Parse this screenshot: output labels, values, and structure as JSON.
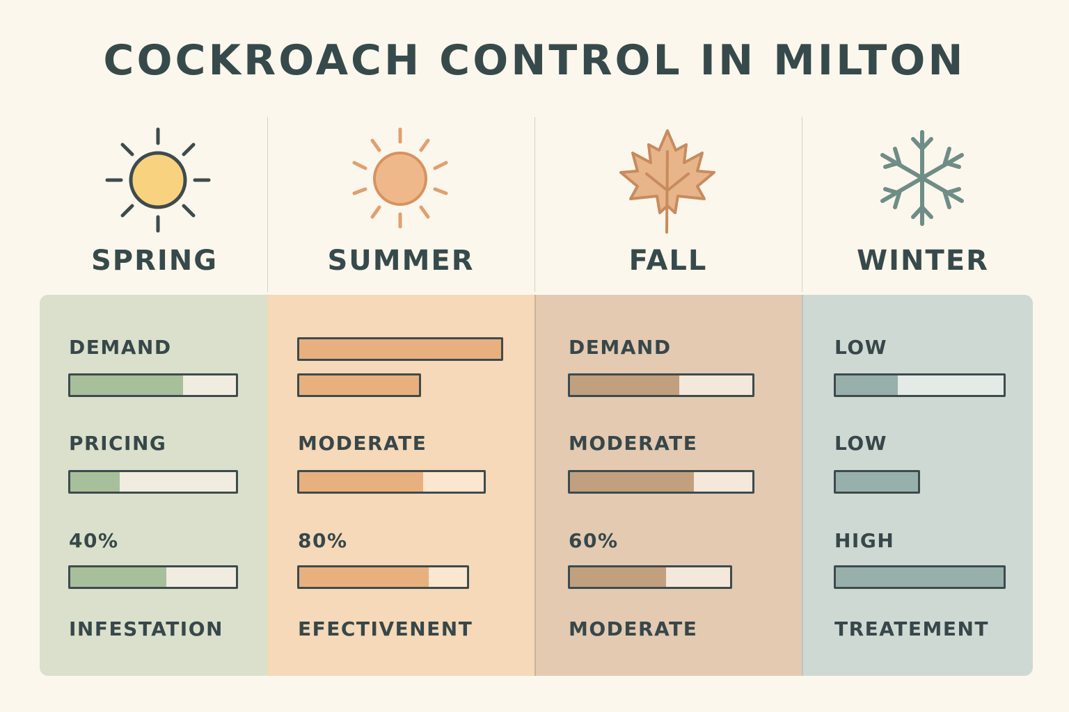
{
  "title": "COCKROACH CONTROL IN MILTON",
  "colors": {
    "background": "#fcf7ec",
    "spring_fill": "#a7bf9b",
    "summer_fill": "#e8b07f",
    "fall_fill": "#c1a07f",
    "winter_fill": "#97b0ac"
  },
  "seasons": [
    {
      "name": "SPRING",
      "icon": "sun-icon",
      "labels": [
        "DEMAND",
        "PRICING",
        "40%",
        "INFESTATION"
      ],
      "bars": [
        0.68,
        0.3,
        0.58
      ]
    },
    {
      "name": "SUMMER",
      "icon": "sun-icon",
      "labels": [
        "MODERATE",
        "80%",
        "EFECTIVENENT"
      ],
      "bars": [
        1.0,
        1.0,
        0.67,
        0.77
      ]
    },
    {
      "name": "FALL",
      "icon": "maple-leaf-icon",
      "labels": [
        "DEMAND",
        "MODERATE",
        "60%",
        "MODERATE"
      ],
      "bars": [
        0.6,
        0.68,
        0.6
      ]
    },
    {
      "name": "WINTER",
      "icon": "snowflake-icon",
      "labels": [
        "LOW",
        "LOW",
        "HIGH",
        "TREATEMENT"
      ],
      "bars": [
        0.37,
        1.0,
        1.0
      ]
    }
  ]
}
